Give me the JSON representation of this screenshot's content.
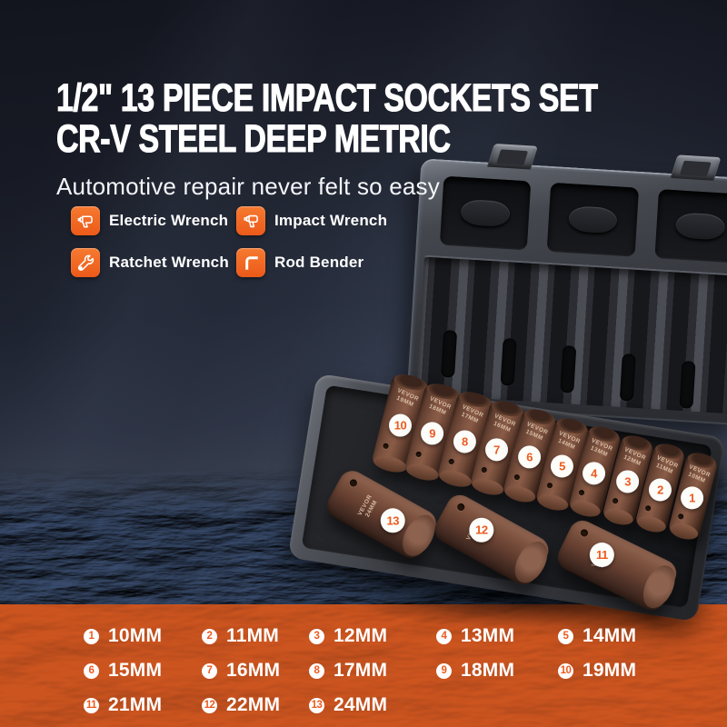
{
  "header": {
    "title_line1": "1/2\" 13 PIECE IMPACT SOCKETS SET",
    "title_line2": "CR-V STEEL DEEP METRIC",
    "subtitle": "Automotive repair never felt so easy"
  },
  "features": [
    {
      "icon": "drill-icon",
      "label": "Electric Wrench"
    },
    {
      "icon": "impact-driver-icon",
      "label": "Impact Wrench"
    },
    {
      "icon": "ratchet-wrench-icon",
      "label": "Ratchet Wrench"
    },
    {
      "icon": "hex-key-icon",
      "label": "Rod Bender"
    }
  ],
  "case_photo": {
    "brand": "VEVOR",
    "top_row_sockets": [
      {
        "num": "10",
        "size": "19MM"
      },
      {
        "num": "9",
        "size": "18MM"
      },
      {
        "num": "8",
        "size": "17MM"
      },
      {
        "num": "7",
        "size": "16MM"
      },
      {
        "num": "6",
        "size": "15MM"
      },
      {
        "num": "5",
        "size": "14MM"
      },
      {
        "num": "4",
        "size": "13MM"
      },
      {
        "num": "3",
        "size": "12MM"
      },
      {
        "num": "2",
        "size": "11MM"
      },
      {
        "num": "1",
        "size": "10MM"
      }
    ],
    "bottom_row_sockets": [
      {
        "num": "13",
        "size": "24MM"
      },
      {
        "num": "12",
        "size": "22MM"
      },
      {
        "num": "11",
        "size": "21MM"
      }
    ]
  },
  "size_legend": [
    {
      "num": "1",
      "size": "10MM"
    },
    {
      "num": "2",
      "size": "11MM"
    },
    {
      "num": "3",
      "size": "12MM"
    },
    {
      "num": "4",
      "size": "13MM"
    },
    {
      "num": "5",
      "size": "14MM"
    },
    {
      "num": "6",
      "size": "15MM"
    },
    {
      "num": "7",
      "size": "16MM"
    },
    {
      "num": "8",
      "size": "17MM"
    },
    {
      "num": "9",
      "size": "18MM"
    },
    {
      "num": "10",
      "size": "19MM"
    },
    {
      "num": "11",
      "size": "21MM"
    },
    {
      "num": "12",
      "size": "22MM"
    },
    {
      "num": "13",
      "size": "24MM"
    }
  ],
  "colors": {
    "accent_orange": "#F0662A",
    "legend_number_orange": "#EE5A1F",
    "band_orange": "#C4511E",
    "background_dark": "#14161F",
    "socket_brown": "#7A5140",
    "case_gray": "#3C3E44",
    "text_white": "#FFFFFF"
  }
}
